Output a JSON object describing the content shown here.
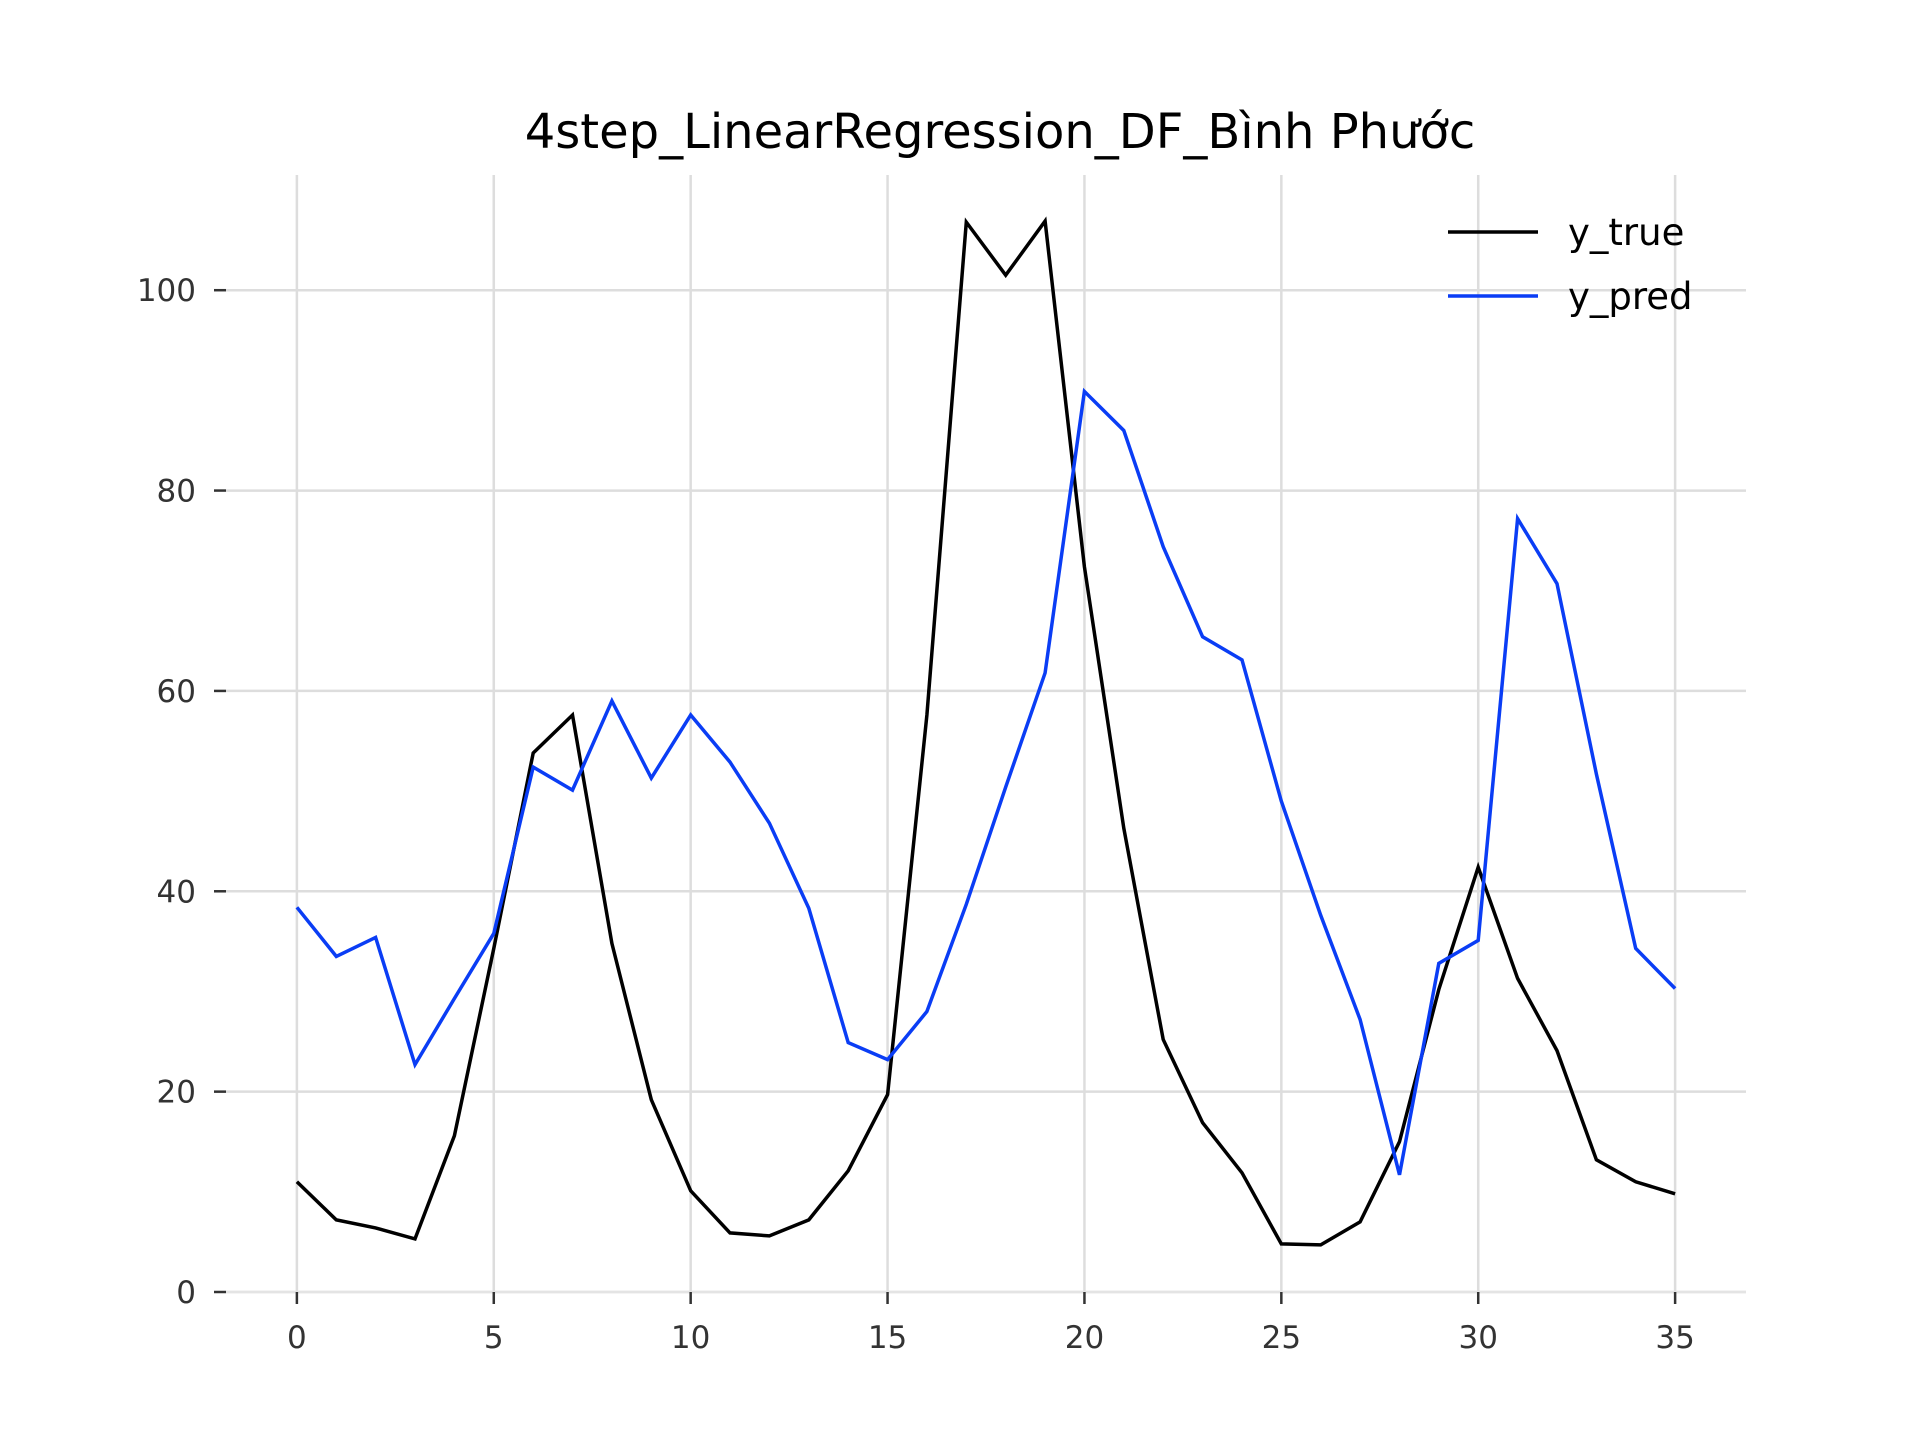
{
  "chart_data": {
    "type": "line",
    "title": "4step_LinearRegression_DF_Bình Phước",
    "xlabel": "",
    "ylabel": "",
    "xlim": [
      -1.8,
      36.8
    ],
    "ylim": [
      -0.0,
      111.5
    ],
    "xticks": [
      0,
      5,
      10,
      15,
      20,
      25,
      30,
      35
    ],
    "yticks": [
      0,
      20,
      40,
      60,
      80,
      100
    ],
    "grid": true,
    "legend_position": "top-right",
    "x": [
      0,
      1,
      2,
      3,
      4,
      5,
      6,
      7,
      8,
      9,
      10,
      11,
      12,
      13,
      14,
      15,
      16,
      17,
      18,
      19,
      20,
      21,
      22,
      23,
      24,
      25,
      26,
      27,
      28,
      29,
      30,
      31,
      32,
      33,
      34,
      35
    ],
    "series": [
      {
        "name": "y_true",
        "color": "#000000",
        "values": [
          11.0,
          7.2,
          6.4,
          5.3,
          15.6,
          34.3,
          53.8,
          57.6,
          34.8,
          19.2,
          10.1,
          5.9,
          5.6,
          7.2,
          12.1,
          19.7,
          57.6,
          106.8,
          101.5,
          106.9,
          72.4,
          46.3,
          25.2,
          16.9,
          11.9,
          4.8,
          4.7,
          7.0,
          15.0,
          30.2,
          42.4,
          31.3,
          24.1,
          13.2,
          11.0,
          9.8
        ]
      },
      {
        "name": "y_pred",
        "color": "#0a3df5",
        "values": [
          38.4,
          33.5,
          35.4,
          22.7,
          29.3,
          35.8,
          52.4,
          50.1,
          59.0,
          51.3,
          57.6,
          52.9,
          46.8,
          38.3,
          24.9,
          23.2,
          28.0,
          38.7,
          50.4,
          61.8,
          89.9,
          86.0,
          74.4,
          65.4,
          63.1,
          49.0,
          37.6,
          27.2,
          11.7,
          32.8,
          35.1,
          77.2,
          70.7,
          51.7,
          34.3,
          30.3
        ]
      }
    ]
  }
}
